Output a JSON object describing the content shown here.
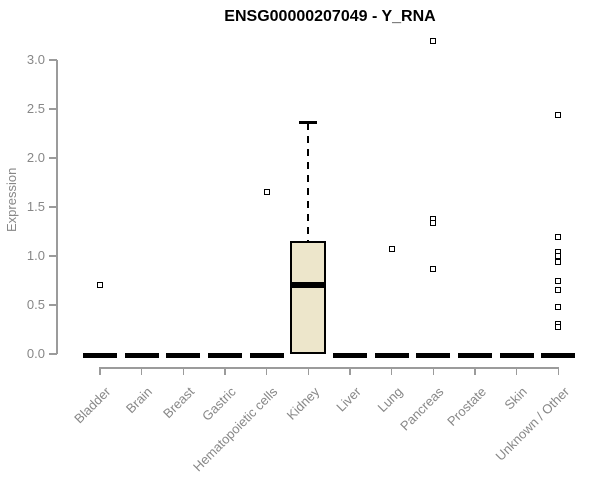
{
  "chart_data": {
    "type": "boxplot",
    "title": "ENSG00000207049 - Y_RNA",
    "ylabel": "Expression",
    "xlabel": "",
    "ylim": [
      0,
      3.0
    ],
    "yticks": [
      0.0,
      0.5,
      1.0,
      1.5,
      2.0,
      2.5,
      3.0
    ],
    "grid": "off",
    "legend": "none",
    "marker": "open-square",
    "categories": [
      "Bladder",
      "Brain",
      "Breast",
      "Gastric",
      "Hematopoietic cells",
      "Kidney",
      "Liver",
      "Lung",
      "Pancreas",
      "Prostate",
      "Skin",
      "Unknown / Other"
    ],
    "boxes": [
      {
        "category": "Bladder",
        "q1": 0,
        "median": 0,
        "q3": 0,
        "whisker_low": 0,
        "whisker_high": 0,
        "outliers": [
          0.7
        ]
      },
      {
        "category": "Brain",
        "q1": 0,
        "median": 0,
        "q3": 0,
        "whisker_low": 0,
        "whisker_high": 0,
        "outliers": []
      },
      {
        "category": "Breast",
        "q1": 0,
        "median": 0,
        "q3": 0,
        "whisker_low": 0,
        "whisker_high": 0,
        "outliers": []
      },
      {
        "category": "Gastric",
        "q1": 0,
        "median": 0,
        "q3": 0,
        "whisker_low": 0,
        "whisker_high": 0,
        "outliers": []
      },
      {
        "category": "Hematopoietic cells",
        "q1": 0,
        "median": 0,
        "q3": 0,
        "whisker_low": 0,
        "whisker_high": 0,
        "outliers": [
          1.65
        ]
      },
      {
        "category": "Kidney",
        "q1": 0,
        "median": 0.7,
        "q3": 1.15,
        "whisker_low": 0,
        "whisker_high": 2.36,
        "outliers": []
      },
      {
        "category": "Liver",
        "q1": 0,
        "median": 0,
        "q3": 0,
        "whisker_low": 0,
        "whisker_high": 0,
        "outliers": []
      },
      {
        "category": "Lung",
        "q1": 0,
        "median": 0,
        "q3": 0,
        "whisker_low": 0,
        "whisker_high": 0,
        "outliers": [
          1.07
        ]
      },
      {
        "category": "Pancreas",
        "q1": 0,
        "median": 0,
        "q3": 0,
        "whisker_low": 0,
        "whisker_high": 0,
        "outliers": [
          3.19,
          1.38,
          1.34,
          0.87
        ]
      },
      {
        "category": "Prostate",
        "q1": 0,
        "median": 0,
        "q3": 0,
        "whisker_low": 0,
        "whisker_high": 0,
        "outliers": []
      },
      {
        "category": "Skin",
        "q1": 0,
        "median": 0,
        "q3": 0,
        "whisker_low": 0,
        "whisker_high": 0,
        "outliers": []
      },
      {
        "category": "Unknown / Other",
        "q1": 0,
        "median": 0,
        "q3": 0,
        "whisker_low": 0,
        "whisker_high": 0,
        "outliers": [
          2.44,
          1.19,
          1.04,
          1.0,
          0.94,
          0.75,
          0.65,
          0.48,
          0.31,
          0.28
        ]
      }
    ],
    "colors": {
      "box_fill": "#EDE6CB",
      "box_border": "#000000",
      "axis": "#9B9B9B",
      "tick_label": "#878787",
      "title": "#000000",
      "outlier": "#000000"
    }
  }
}
